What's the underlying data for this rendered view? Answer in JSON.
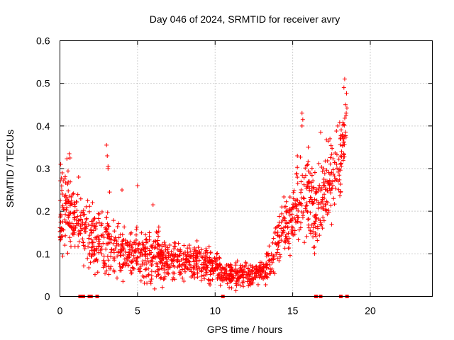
{
  "chart_data": {
    "type": "scatter",
    "title": "Day 046 of 2024, SRMTID for receiver avry",
    "xlabel": "GPS time / hours",
    "ylabel": "SRMTID / TECUs",
    "xlim": [
      0,
      24
    ],
    "ylim": [
      0,
      0.6
    ],
    "xticks": [
      0,
      5,
      10,
      15,
      20
    ],
    "yticks": [
      0,
      0.1,
      0.2,
      0.3,
      0.4,
      0.5,
      0.6
    ],
    "xtick_labels": [
      "0",
      "5",
      "10",
      "15",
      "20"
    ],
    "ytick_labels": [
      "0",
      "0.1",
      "0.2",
      "0.3",
      "0.4",
      "0.5",
      "0.6"
    ],
    "grid": true,
    "marker": "+",
    "series_color": "#ff0000",
    "trend_x": [
      0,
      0.3,
      0.6,
      1,
      1.5,
      2,
      2.5,
      3,
      3.5,
      4,
      4.5,
      5,
      5.5,
      6,
      6.5,
      7,
      7.5,
      8,
      8.5,
      9,
      9.5,
      10,
      10.5,
      11,
      11.5,
      12,
      12.5,
      13,
      13.5,
      14,
      14.5,
      15,
      15.5,
      16,
      16.5,
      17,
      17.5,
      18,
      18.3,
      18.5
    ],
    "trend_y": [
      0.2,
      0.21,
      0.2,
      0.17,
      0.15,
      0.14,
      0.13,
      0.12,
      0.11,
      0.1,
      0.11,
      0.1,
      0.09,
      0.09,
      0.09,
      0.08,
      0.08,
      0.08,
      0.08,
      0.08,
      0.07,
      0.07,
      0.06,
      0.05,
      0.05,
      0.05,
      0.05,
      0.06,
      0.07,
      0.13,
      0.17,
      0.2,
      0.25,
      0.24,
      0.19,
      0.24,
      0.27,
      0.3,
      0.38,
      0.43
    ],
    "spread": [
      0.07,
      0.07,
      0.07,
      0.06,
      0.05,
      0.05,
      0.05,
      0.05,
      0.05,
      0.04,
      0.04,
      0.04,
      0.04,
      0.04,
      0.04,
      0.03,
      0.03,
      0.03,
      0.03,
      0.03,
      0.03,
      0.03,
      0.02,
      0.02,
      0.02,
      0.02,
      0.02,
      0.02,
      0.03,
      0.04,
      0.05,
      0.06,
      0.07,
      0.06,
      0.06,
      0.06,
      0.06,
      0.06,
      0.05,
      0.04
    ],
    "spikes": [
      {
        "x": 0.05,
        "y": 0.31
      },
      {
        "x": 0.15,
        "y": 0.29
      },
      {
        "x": 0.6,
        "y": 0.335
      },
      {
        "x": 0.65,
        "y": 0.325
      },
      {
        "x": 1.2,
        "y": 0.28
      },
      {
        "x": 2.1,
        "y": 0.22
      },
      {
        "x": 3.0,
        "y": 0.355
      },
      {
        "x": 3.05,
        "y": 0.33
      },
      {
        "x": 3.1,
        "y": 0.305
      },
      {
        "x": 3.1,
        "y": 0.3
      },
      {
        "x": 3.2,
        "y": 0.245
      },
      {
        "x": 4.0,
        "y": 0.25
      },
      {
        "x": 5.0,
        "y": 0.26
      },
      {
        "x": 6.0,
        "y": 0.215
      },
      {
        "x": 15.6,
        "y": 0.43
      },
      {
        "x": 15.65,
        "y": 0.415
      },
      {
        "x": 15.6,
        "y": 0.4
      },
      {
        "x": 16.0,
        "y": 0.35
      },
      {
        "x": 16.8,
        "y": 0.385
      },
      {
        "x": 17.4,
        "y": 0.37
      },
      {
        "x": 17.9,
        "y": 0.4
      },
      {
        "x": 18.2,
        "y": 0.38
      },
      {
        "x": 18.3,
        "y": 0.49
      },
      {
        "x": 18.35,
        "y": 0.51
      },
      {
        "x": 18.4,
        "y": 0.45
      },
      {
        "x": 18.45,
        "y": 0.43
      },
      {
        "x": 15.3,
        "y": 0.33
      },
      {
        "x": 14.3,
        "y": 0.21
      }
    ],
    "zero_markers_x": [
      1.3,
      1.5,
      1.9,
      2.0,
      2.4,
      10.5,
      16.5,
      16.8,
      18.1,
      18.5
    ]
  }
}
